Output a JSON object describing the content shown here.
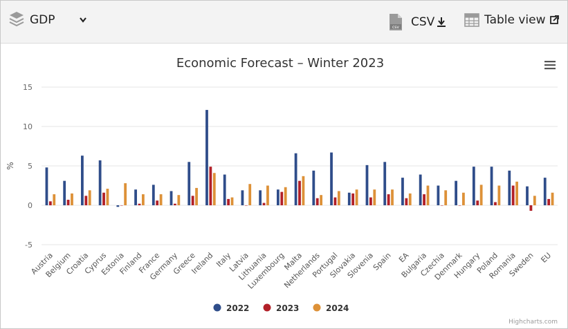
{
  "toolbar": {
    "indicator_label": "GDP",
    "csv_label": "CSV",
    "table_view_label": "Table view"
  },
  "credits": "Highcharts.com",
  "colors": {
    "2022": "#2f4d8a",
    "2023": "#b22028",
    "2024": "#dd9138"
  },
  "icons": [
    "layers-icon",
    "chevron-down-icon",
    "csv-file-icon",
    "download-icon",
    "table-icon",
    "external-link-icon",
    "hamburger-menu-icon"
  ],
  "chart_data": {
    "type": "bar",
    "title": "Economic Forecast – Winter 2023",
    "ylabel": "%",
    "xlabel": "",
    "ylim": [
      -5,
      15
    ],
    "yticks": [
      -5,
      0,
      5,
      10,
      15
    ],
    "grid": true,
    "legend_position": "bottom-center",
    "categories": [
      "Austria",
      "Belgium",
      "Croatia",
      "Cyprus",
      "Estonia",
      "Finland",
      "France",
      "Germany",
      "Greece",
      "Ireland",
      "Italy",
      "Latvia",
      "Lithuania",
      "Luxembourg",
      "Malta",
      "Netherlands",
      "Portugal",
      "Slovakia",
      "Slovenia",
      "Spain",
      "EA",
      "Bulgaria",
      "Czechia",
      "Denmark",
      "Hungary",
      "Poland",
      "Romania",
      "Sweden",
      "EU"
    ],
    "series": [
      {
        "name": "2022",
        "values": [
          4.8,
          3.1,
          6.3,
          5.7,
          -0.2,
          2.0,
          2.6,
          1.8,
          5.5,
          12.1,
          3.9,
          1.9,
          1.9,
          2.0,
          6.6,
          4.4,
          6.7,
          1.6,
          5.1,
          5.5,
          3.5,
          3.9,
          2.5,
          3.1,
          4.9,
          4.9,
          4.4,
          2.4,
          3.5
        ]
      },
      {
        "name": "2023",
        "values": [
          0.5,
          0.7,
          1.2,
          1.6,
          0.0,
          0.2,
          0.6,
          0.2,
          1.2,
          4.9,
          0.8,
          0.0,
          0.3,
          1.7,
          3.1,
          0.9,
          1.0,
          1.5,
          1.0,
          1.4,
          0.9,
          1.4,
          0.0,
          0.0,
          0.6,
          0.4,
          2.5,
          -0.7,
          0.8
        ]
      },
      {
        "name": "2024",
        "values": [
          1.4,
          1.5,
          1.9,
          2.1,
          2.8,
          1.4,
          1.4,
          1.3,
          2.2,
          4.1,
          1.0,
          2.7,
          2.5,
          2.3,
          3.7,
          1.3,
          1.8,
          2.0,
          2.0,
          2.0,
          1.5,
          2.5,
          1.9,
          1.6,
          2.6,
          2.5,
          3.0,
          1.2,
          1.6
        ]
      }
    ]
  }
}
